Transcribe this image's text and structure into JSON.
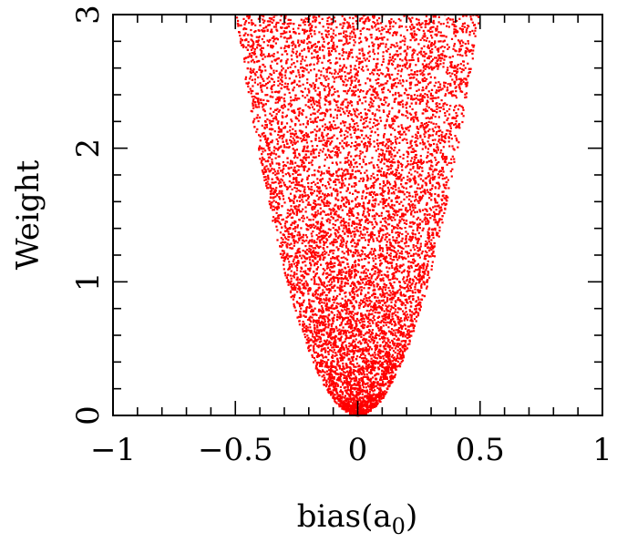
{
  "chart_data": {
    "type": "scatter",
    "title": "",
    "xlabel": "bias(a_0)",
    "xlabel_parts": {
      "main": "bias(a",
      "sub": "0",
      "close": ")"
    },
    "ylabel": "Weight",
    "xlim": [
      -1,
      1
    ],
    "ylim": [
      0,
      3
    ],
    "x_ticks": [
      -1,
      -0.5,
      0,
      0.5,
      1
    ],
    "x_tick_labels": [
      "−1",
      "−0.5",
      "0",
      "0.5",
      "1"
    ],
    "y_ticks": [
      0,
      1,
      2,
      3
    ],
    "y_tick_labels": [
      "0",
      "1",
      "2",
      "3"
    ],
    "x_minor_step": 0.1,
    "y_minor_step": 0.2,
    "grid": false,
    "legend": "none",
    "point_color": "#ff0000",
    "series": [
      {
        "description_of_shape": "dense cloud of points filling a parabolic region y >= 12*x^2, x in [-0.5, 0.5], y in [0, 3]",
        "boundary": {
          "form": "y = 12*x^2",
          "x_min": -0.5,
          "x_max": 0.5,
          "y_min": 0,
          "y_max": 3
        },
        "approx_point_count": 9000
      }
    ]
  }
}
